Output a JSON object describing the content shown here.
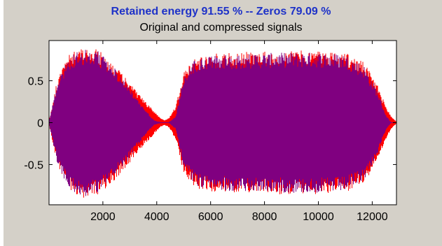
{
  "window": {
    "retained_title": "Retained energy 91.55 % -- Zeros 79.09 %"
  },
  "colors": {
    "figure_background": "#d4d0c8",
    "axes_background": "#ffffff",
    "original_signal": "#ff0000",
    "compressed_signal": "#800080",
    "retained_title_color": "#1e32c8"
  },
  "chart_data": {
    "type": "line",
    "title": "Original and compressed signals",
    "xlabel": "",
    "ylabel": "",
    "xlim": [
      1,
      12900
    ],
    "ylim": [
      -0.98,
      0.98
    ],
    "xticks": [
      2000,
      4000,
      6000,
      8000,
      10000,
      12000
    ],
    "xtick_labels": [
      "2000",
      "4000",
      "6000",
      "8000",
      "10000",
      "12000"
    ],
    "yticks": [
      0.5,
      0,
      -0.5
    ],
    "ytick_labels": [
      "0.5",
      "0",
      "-0.5"
    ],
    "grid": false,
    "legend": "none",
    "series": [
      {
        "role": "original",
        "color": "#ff0000",
        "envelope_x": [
          0,
          300,
          700,
          1200,
          1800,
          2400,
          3000,
          3500,
          3900,
          4150,
          4300,
          4450,
          4700,
          5000,
          5400,
          6000,
          7000,
          8000,
          9000,
          10000,
          11000,
          11700,
          12200,
          12500,
          12700,
          12900
        ],
        "envelope_amplitude": [
          0.02,
          0.5,
          0.8,
          0.9,
          0.88,
          0.7,
          0.48,
          0.28,
          0.14,
          0.05,
          0.03,
          0.06,
          0.2,
          0.6,
          0.78,
          0.82,
          0.84,
          0.85,
          0.86,
          0.86,
          0.84,
          0.72,
          0.45,
          0.2,
          0.08,
          0.01
        ]
      },
      {
        "role": "compressed",
        "color": "#800080",
        "envelope_x": [
          0,
          300,
          700,
          1200,
          1800,
          2400,
          3000,
          3500,
          3900,
          4150,
          4300,
          4450,
          4700,
          5000,
          5400,
          6000,
          7000,
          8000,
          9000,
          10000,
          11000,
          11700,
          12200,
          12500,
          12700,
          12900
        ],
        "envelope_amplitude": [
          0.01,
          0.47,
          0.78,
          0.88,
          0.86,
          0.67,
          0.42,
          0.18,
          0.03,
          0.0,
          0.0,
          0.0,
          0.08,
          0.55,
          0.75,
          0.8,
          0.82,
          0.83,
          0.84,
          0.84,
          0.82,
          0.68,
          0.38,
          0.1,
          0.0,
          0.0
        ]
      }
    ]
  }
}
